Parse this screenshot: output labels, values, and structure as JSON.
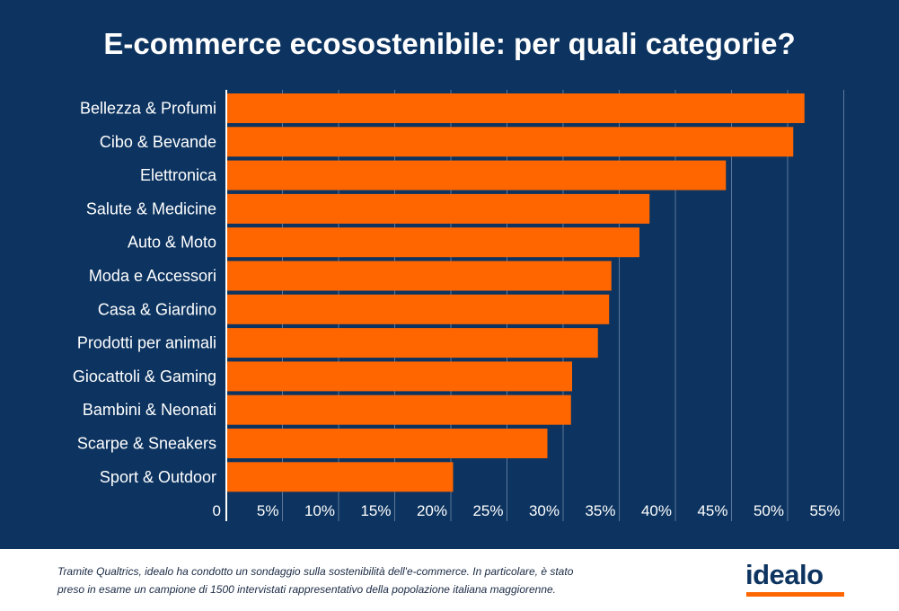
{
  "colors": {
    "background": "#0d3460",
    "bar": "#ff6600",
    "text": "#ffffff",
    "grid": "#5c7699",
    "footer_bg": "#ffffff",
    "logo": "#0d3460",
    "logo_accent": "#ff6600"
  },
  "chart_data": {
    "type": "bar",
    "orientation": "horizontal",
    "title": "E-commerce ecosostenibile: per quali categorie?",
    "categories": [
      "Bellezza & Profumi",
      "Cibo & Bevande",
      "Elettronica",
      "Salute & Medicine",
      "Auto & Moto",
      "Moda e Accessori",
      "Casa & Giardino",
      "Prodotti per animali",
      "Giocattoli & Gaming",
      "Bambini & Neonati",
      "Scarpe & Sneakers",
      "Sport & Outdoor"
    ],
    "values": [
      51.5,
      50.5,
      44.5,
      37.7,
      36.8,
      34.3,
      34.1,
      33.1,
      30.8,
      30.7,
      28.6,
      20.2
    ],
    "xlim": [
      0,
      55
    ],
    "xticks": [
      0,
      5,
      10,
      15,
      20,
      25,
      30,
      35,
      40,
      45,
      50,
      55
    ],
    "xtick_labels": [
      "0",
      "5%",
      "10%",
      "15%",
      "20%",
      "25%",
      "30%",
      "35%",
      "40%",
      "45%",
      "50%",
      "55%"
    ],
    "grid": true
  },
  "footer": {
    "note_line1": "Tramite Qualtrics, idealo ha condotto un sondaggio sulla sostenibilità dell'e-commerce. In particolare, è stato",
    "note_line2": "preso in esame un campione di 1500 intervistati rappresentativo della popolazione italiana maggiorenne.",
    "logo_text": "idealo"
  }
}
